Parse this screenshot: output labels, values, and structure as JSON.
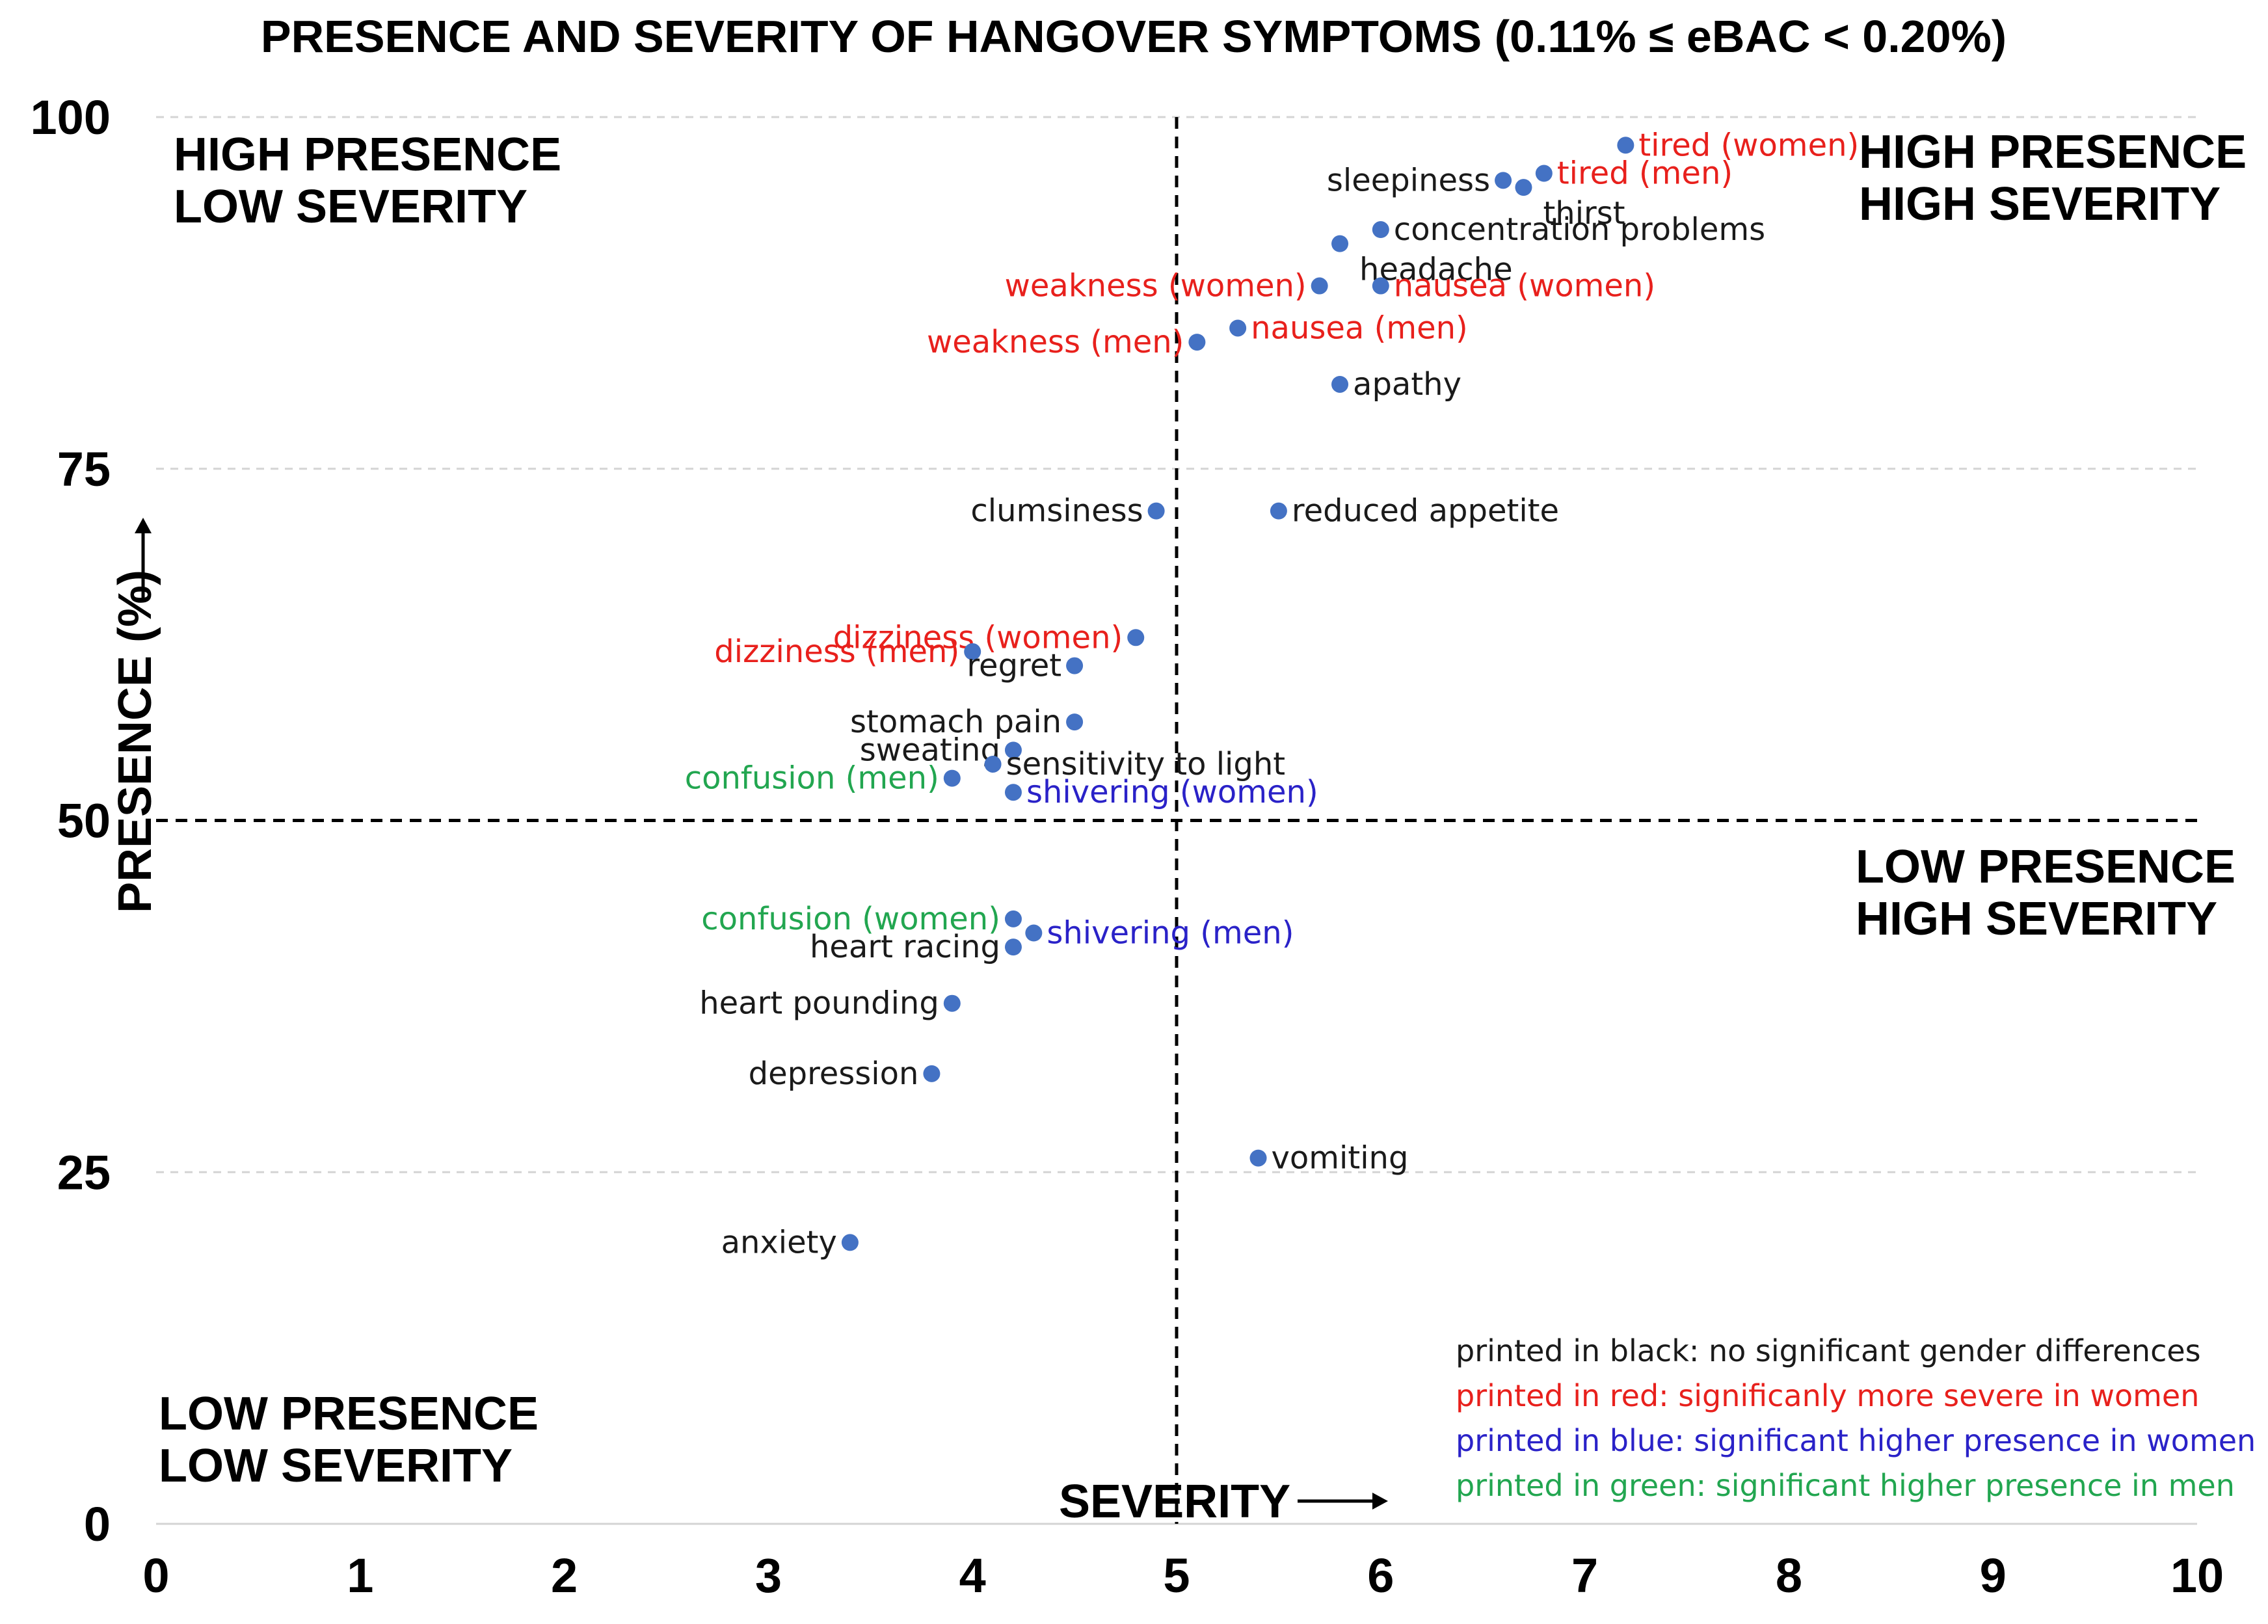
{
  "chart_data": {
    "type": "scatter",
    "title": "PRESENCE AND SEVERITY OF HANGOVER SYMPTOMS (0.11% ≤ eBAC < 0.20%)",
    "xlabel": "SEVERITY",
    "ylabel": "PRESENCE (%)",
    "xlim": [
      0,
      10
    ],
    "ylim": [
      0,
      100
    ],
    "x_ticks": [
      "0",
      "1",
      "2",
      "3",
      "4",
      "5",
      "6",
      "7",
      "8",
      "9",
      "10"
    ],
    "y_ticks": [
      "0",
      "25",
      "50",
      "75",
      "100"
    ],
    "grid": true,
    "divider_x": 5,
    "divider_y": 50,
    "quadrants": {
      "top_left": [
        "HIGH PRESENCE",
        "LOW SEVERITY"
      ],
      "top_right": [
        "HIGH PRESENCE",
        "HIGH SEVERITY"
      ],
      "bottom_right": [
        "LOW PRESENCE",
        "HIGH SEVERITY"
      ],
      "bottom_left": [
        "LOW PRESENCE",
        "LOW SEVERITY"
      ]
    },
    "colors": {
      "black": "#1a1a1a",
      "red": "#e8201c",
      "blue": "#2a22c8",
      "green": "#22a650",
      "marker": "#4472c4"
    },
    "points": [
      {
        "label": "tired (women)",
        "x": 7.2,
        "y": 98,
        "group": "red",
        "side": "right"
      },
      {
        "label": "tired (men)",
        "x": 6.8,
        "y": 96,
        "group": "red",
        "side": "right"
      },
      {
        "label": "sleepiness",
        "x": 6.6,
        "y": 95.5,
        "group": "black",
        "side": "left"
      },
      {
        "label": "thirst",
        "x": 6.7,
        "y": 95,
        "group": "black",
        "side": "below"
      },
      {
        "label": "concentration problems",
        "x": 6.0,
        "y": 92,
        "group": "black",
        "side": "right"
      },
      {
        "label": "headache",
        "x": 5.8,
        "y": 91,
        "group": "black",
        "side": "below"
      },
      {
        "label": "weakness (women)",
        "x": 5.7,
        "y": 88,
        "group": "red",
        "side": "left"
      },
      {
        "label": "nausea (women)",
        "x": 6.0,
        "y": 88,
        "group": "red",
        "side": "right"
      },
      {
        "label": "nausea (men)",
        "x": 5.3,
        "y": 85,
        "group": "red",
        "side": "right"
      },
      {
        "label": "weakness (men)",
        "x": 5.1,
        "y": 84,
        "group": "red",
        "side": "left"
      },
      {
        "label": "apathy",
        "x": 5.8,
        "y": 81,
        "group": "black",
        "side": "right"
      },
      {
        "label": "clumsiness",
        "x": 4.9,
        "y": 72,
        "group": "black",
        "side": "left"
      },
      {
        "label": "reduced appetite",
        "x": 5.5,
        "y": 72,
        "group": "black",
        "side": "right"
      },
      {
        "label": "dizziness (women)",
        "x": 4.8,
        "y": 63,
        "group": "red",
        "side": "left"
      },
      {
        "label": "dizziness (men)",
        "x": 4.0,
        "y": 62,
        "group": "red",
        "side": "left"
      },
      {
        "label": "regret",
        "x": 4.5,
        "y": 61,
        "group": "black",
        "side": "left"
      },
      {
        "label": "stomach pain",
        "x": 4.5,
        "y": 57,
        "group": "black",
        "side": "left"
      },
      {
        "label": "sweating",
        "x": 4.2,
        "y": 55,
        "group": "black",
        "side": "left"
      },
      {
        "label": "sensitivity to light",
        "x": 4.1,
        "y": 54,
        "group": "black",
        "side": "right"
      },
      {
        "label": "confusion (men)",
        "x": 3.9,
        "y": 53,
        "group": "green",
        "side": "left"
      },
      {
        "label": "shivering (women)",
        "x": 4.2,
        "y": 52,
        "group": "blue",
        "side": "right"
      },
      {
        "label": "confusion (women)",
        "x": 4.2,
        "y": 43,
        "group": "green",
        "side": "left"
      },
      {
        "label": "shivering (men)",
        "x": 4.3,
        "y": 42,
        "group": "blue",
        "side": "right"
      },
      {
        "label": "heart racing",
        "x": 4.2,
        "y": 41,
        "group": "black",
        "side": "left"
      },
      {
        "label": "heart pounding",
        "x": 3.9,
        "y": 37,
        "group": "black",
        "side": "left"
      },
      {
        "label": "depression",
        "x": 3.8,
        "y": 32,
        "group": "black",
        "side": "left"
      },
      {
        "label": "vomiting",
        "x": 5.4,
        "y": 26,
        "group": "black",
        "side": "right"
      },
      {
        "label": "anxiety",
        "x": 3.4,
        "y": 20,
        "group": "black",
        "side": "left"
      }
    ],
    "legend": [
      {
        "text": "printed in black: no significant gender differences",
        "group": "black"
      },
      {
        "text": "printed in red: significanly more severe in women",
        "group": "red"
      },
      {
        "text": "printed in blue: significant higher presence in women",
        "group": "blue"
      },
      {
        "text": "printed in green: significant higher presence in men",
        "group": "green"
      }
    ]
  }
}
